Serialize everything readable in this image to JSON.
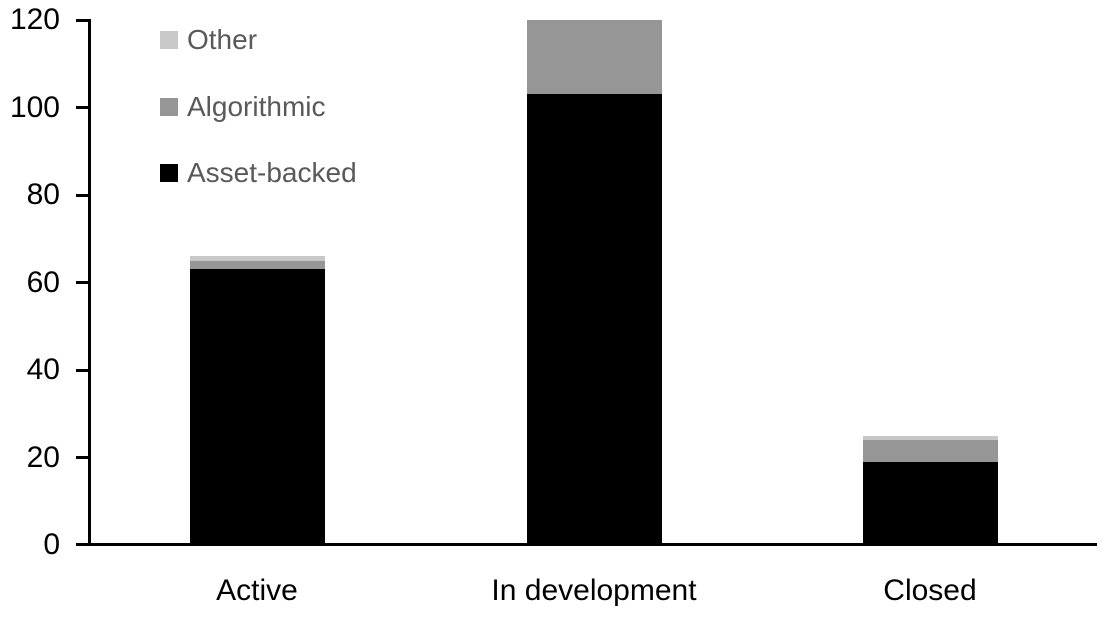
{
  "chart_data": {
    "type": "bar",
    "variant": "stacked",
    "title": "",
    "xlabel": "",
    "ylabel": "",
    "categories": [
      "Active",
      "In development",
      "Closed"
    ],
    "series": [
      {
        "name": "Asset-backed",
        "color": "#000000",
        "values": [
          63,
          103,
          19
        ]
      },
      {
        "name": "Algorithmic",
        "color": "#969696",
        "values": [
          2,
          17,
          5
        ]
      },
      {
        "name": "Other",
        "color": "#c8c8c8",
        "values": [
          1,
          0,
          1
        ]
      }
    ],
    "yticks": [
      "0",
      "20",
      "40",
      "60",
      "80",
      "100",
      "120"
    ],
    "ylim": [
      0,
      120
    ],
    "grid": false,
    "legend": {
      "position": "top-left",
      "items": [
        {
          "label": "Other",
          "color": "#c8c8c8"
        },
        {
          "label": "Algorithmic",
          "color": "#969696"
        },
        {
          "label": "Asset-backed",
          "color": "#000000"
        }
      ]
    }
  },
  "colors": {
    "background": "#ffffff",
    "axis": "#000000",
    "tick_label": "#000000",
    "category_label": "#000000",
    "legend_text": "#595959"
  }
}
